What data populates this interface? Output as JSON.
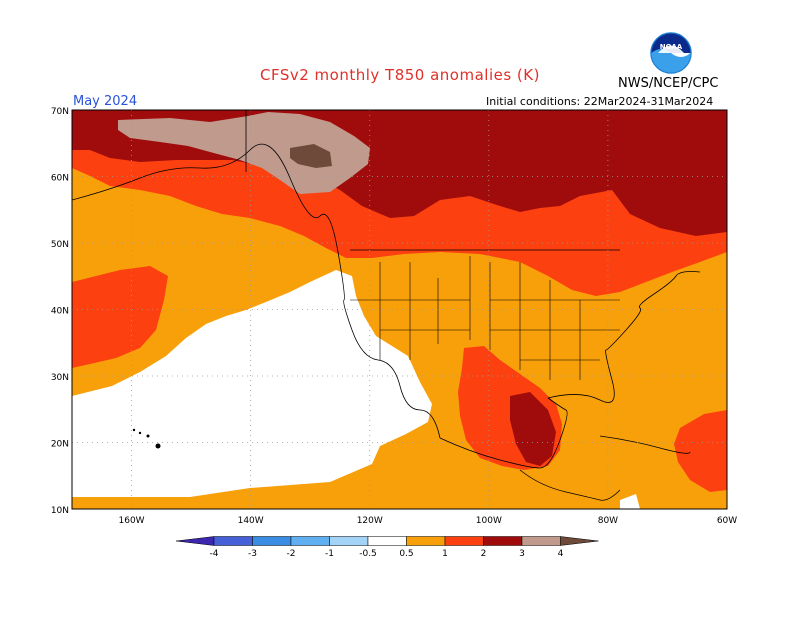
{
  "header": {
    "title": "CFSv2 monthly T850 anomalies (K)",
    "month": "May 2024",
    "initial_conditions": "Initial conditions: 22Mar2024-31Mar2024",
    "organization": "NWS/NCEP/CPC",
    "logo_text": "NOAA"
  },
  "map": {
    "lat_labels": [
      "70N",
      "60N",
      "50N",
      "40N",
      "30N",
      "20N",
      "10N"
    ],
    "lon_labels": [
      "160W",
      "140W",
      "120W",
      "100W",
      "80W",
      "60W"
    ],
    "ocean_color": "#ffffff",
    "grid_style": "dotted"
  },
  "legend": {
    "labels": [
      "-4",
      "-3",
      "-2",
      "-1",
      "-0.5",
      "0.5",
      "1",
      "2",
      "3",
      "4"
    ],
    "colors": [
      "#3d26b0",
      "#4661d8",
      "#3b8de4",
      "#60aff0",
      "#a3d4f8",
      "#ffffff",
      "#f8a00a",
      "#fc4010",
      "#a00c0c",
      "#c09a8c",
      "#6e4a3a"
    ]
  },
  "anomaly_colors": {
    "white": "#ffffff",
    "orange": "#f8a00a",
    "red": "#fc4010",
    "darkred": "#a00c0c",
    "tan": "#c09a8c",
    "brown": "#6e4a3a"
  }
}
